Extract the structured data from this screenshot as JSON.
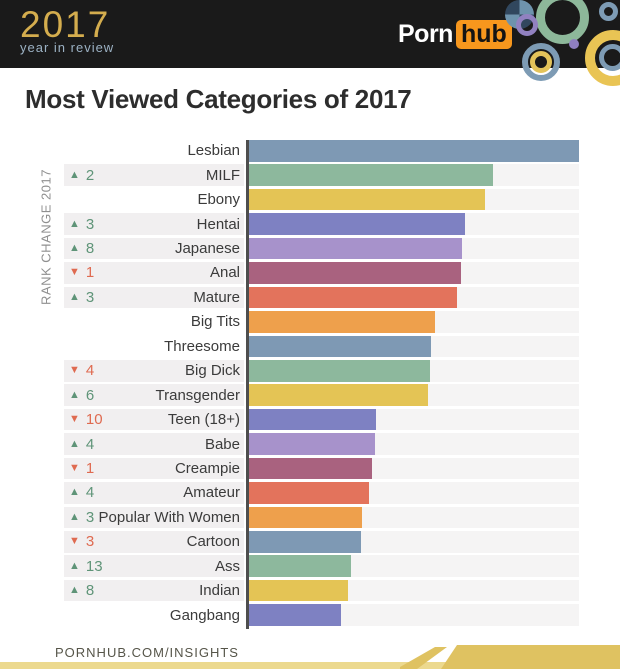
{
  "header": {
    "logo_year": "2017",
    "logo_subtitle": "year in review",
    "brand_porn": "Porn",
    "brand_hub": "hub",
    "colors": {
      "bar_background": "#1a1a1a",
      "logo_gold": "#d4ad4e",
      "logo_subtitle_blue": "#9cb2c4",
      "hub_orange": "#f7971d"
    }
  },
  "title": "Most Viewed Categories of 2017",
  "chart": {
    "axis_label": "RANK CHANGE 2017",
    "up_icon": "▲",
    "down_icon": "▼",
    "up_color": "#5f9478",
    "down_color": "#df6a50"
  },
  "chart_data": {
    "type": "bar",
    "orientation": "horizontal",
    "title": "Most Viewed Categories of 2017",
    "ylabel": "RANK CHANGE 2017",
    "xlabel": "",
    "categories": [
      "Lesbian",
      "MILF",
      "Ebony",
      "Hentai",
      "Japanese",
      "Anal",
      "Mature",
      "Big Tits",
      "Threesome",
      "Big Dick",
      "Transgender",
      "Teen (18+)",
      "Babe",
      "Creampie",
      "Amateur",
      "Popular With Women",
      "Cartoon",
      "Ass",
      "Indian",
      "Gangbang"
    ],
    "values": [
      100,
      74,
      71.5,
      65.5,
      64.5,
      64.2,
      63,
      56.4,
      55.2,
      54.8,
      54.2,
      38.5,
      38.2,
      37.3,
      36.4,
      34.2,
      33.9,
      31,
      30,
      28
    ],
    "values_unit": "relative bar length, percent of longest bar (no numeric axis shown)",
    "rank_change_2017": [
      null,
      2,
      null,
      3,
      8,
      -1,
      3,
      null,
      null,
      -4,
      6,
      -10,
      4,
      -1,
      4,
      3,
      -3,
      13,
      8,
      null
    ],
    "bar_colors": [
      "#7e99b4",
      "#8db89d",
      "#e4c455",
      "#7e81c2",
      "#a792cb",
      "#a9627f",
      "#e3735c",
      "#eea04c"
    ],
    "track_color": "#f5f4f4",
    "grid": false,
    "legend": false
  },
  "footer": {
    "text": "PORNHUB.COM/INSIGHTS",
    "ribbon_color": "#dfc261",
    "strip_color": "#ecd98e",
    "text_color": "#565549"
  }
}
